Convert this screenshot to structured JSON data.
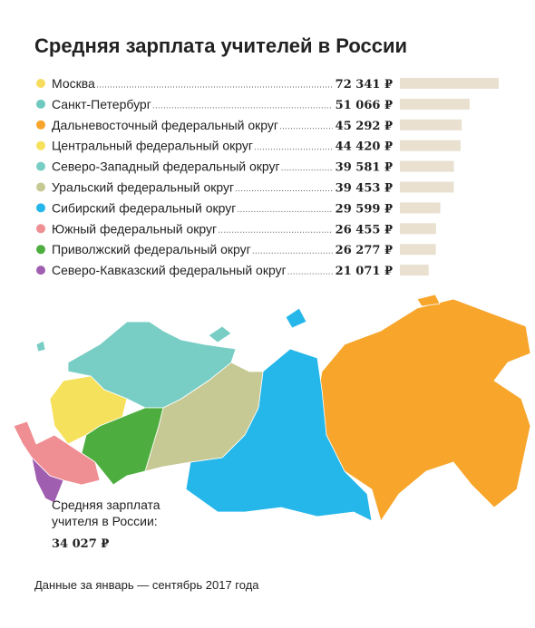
{
  "chart_data": {
    "type": "bar",
    "orientation": "horizontal",
    "title": "Средняя зарплата учителей в России",
    "categories": [
      "Москва",
      "Санкт-Петербург",
      "Дальневосточный федеральный округ",
      "Центральный федеральный округ",
      "Северо-Западный федеральный округ",
      "Уральский федеральный округ",
      "Сибирский федеральный округ",
      "Южный федеральный округ",
      "Приволжский федеральный округ",
      "Северо-Кавказский федеральный округ"
    ],
    "values": [
      72341,
      51066,
      45292,
      44420,
      39581,
      39453,
      29599,
      26455,
      26277,
      21071
    ],
    "value_labels": [
      "72 341 ₽",
      "51 066 ₽",
      "45 292 ₽",
      "44 420 ₽",
      "39 581 ₽",
      "39 453 ₽",
      "29 599 ₽",
      "26 455 ₽",
      "26 277 ₽",
      "21 071 ₽"
    ],
    "colors": [
      "#f6dc5c",
      "#6ec9bf",
      "#f7a52b",
      "#f6e15c",
      "#78cec5",
      "#c7c994",
      "#25b6ea",
      "#f08f93",
      "#4dae3f",
      "#a05eb1"
    ],
    "bar_color": "#e9e0d0",
    "annotation": {
      "lines": [
        "Средняя зарплата",
        "учителя в России:"
      ],
      "value": "34 027 ₽"
    },
    "source": "Данные за январь — сентябрь 2017 года"
  }
}
